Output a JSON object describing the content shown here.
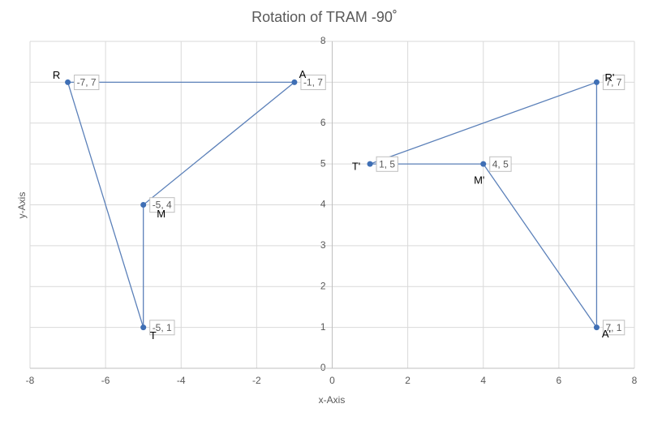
{
  "chart_data": {
    "type": "scatter-lines",
    "title": "Rotation of TRAM -90˚",
    "x_label": "x-Axis",
    "y_label": "y-Axis",
    "xlim": [
      -8,
      8
    ],
    "xticks": [
      -8,
      -6,
      -4,
      -2,
      0,
      2,
      4,
      6,
      8
    ],
    "ylim": [
      0,
      8
    ],
    "yticks": [
      0,
      1,
      2,
      3,
      4,
      5,
      6,
      7,
      8
    ],
    "grid": true,
    "closed": true,
    "series": [
      {
        "color": "#5b80b9",
        "x": [
          -7,
          -1,
          -5,
          -5
        ],
        "values": [
          7,
          7,
          4,
          1
        ],
        "value_labels": [
          "-7, 7",
          "-1, 7",
          "-5, 4",
          "-5, 1"
        ],
        "point_names": [
          "R",
          "A",
          "M",
          "T"
        ]
      },
      {
        "color": "#5b80b9",
        "x": [
          1,
          7,
          7,
          4
        ],
        "values": [
          5,
          7,
          1,
          5
        ],
        "value_labels": [
          "1, 5",
          "7, 7",
          "7, 1",
          "4, 5"
        ],
        "point_names": [
          "T'",
          "R'",
          "A'",
          "M'"
        ]
      }
    ]
  }
}
